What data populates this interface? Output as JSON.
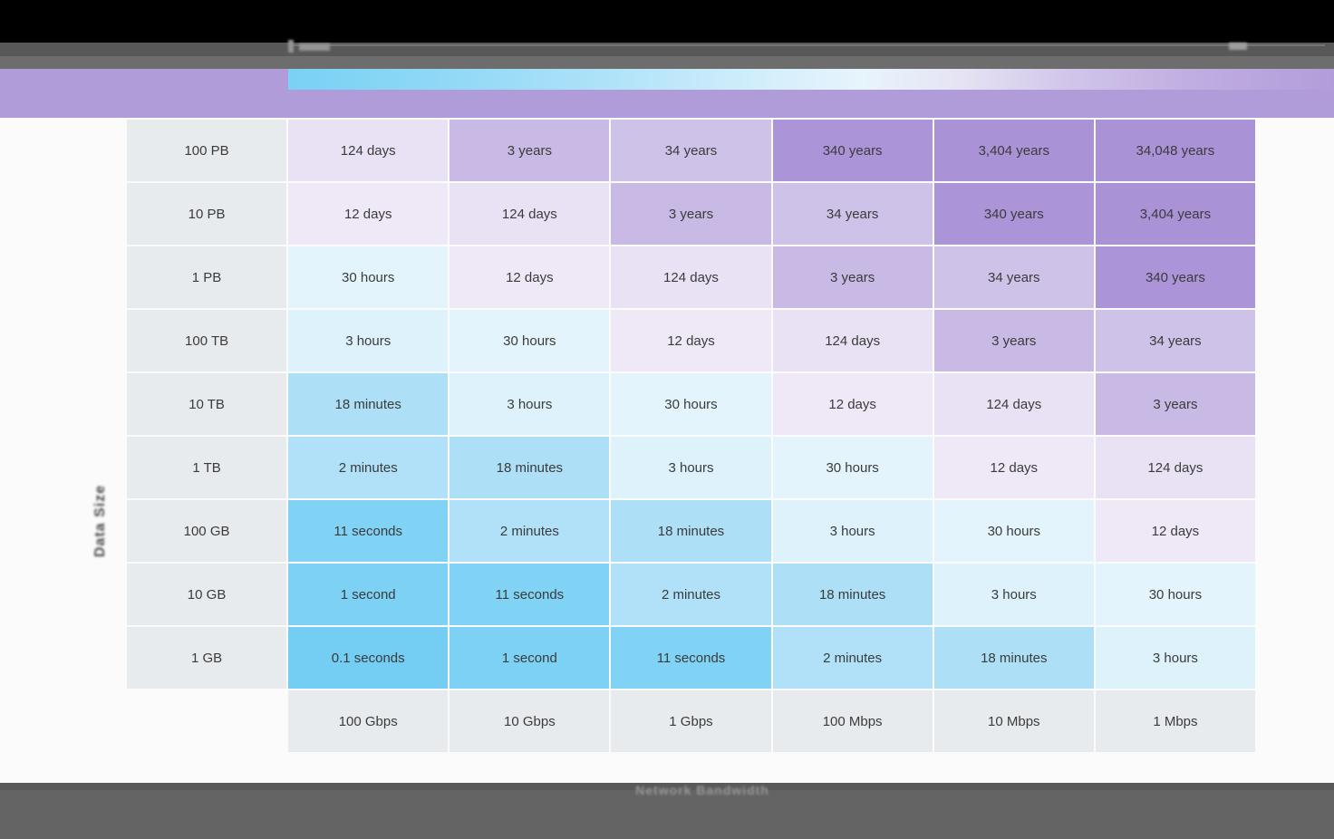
{
  "colors": {
    "top_bar": "#000000",
    "chrome_dark": "#585858",
    "chrome_mid": "#6d6d6d",
    "accent_band": "#b19cda",
    "footer_thin": "#595959",
    "footer": "#646464",
    "page_bg": "#fbfbfb",
    "header_cell_bg": "#e8ebee",
    "cell_text": "#3b3b3b",
    "gradient_strip_start": "#79d1f4",
    "gradient_strip_end": "#b29dda"
  },
  "axis_labels": {
    "y": "Data Size",
    "x": "Network Bandwidth"
  },
  "heatmap": {
    "row_labels": [
      "100 PB",
      "10 PB",
      "1 PB",
      "100 TB",
      "10 TB",
      "1 TB",
      "100 GB",
      "10 GB",
      "1 GB"
    ],
    "col_labels": [
      "100 Gbps",
      "10 Gbps",
      "1 Gbps",
      "100 Mbps",
      "10 Mbps",
      "1 Mbps"
    ],
    "grid": [
      [
        "124 days",
        "3 years",
        "34 years",
        "340 years",
        "3,404 years",
        "34,048 years"
      ],
      [
        "12 days",
        "124 days",
        "3 years",
        "34 years",
        "340 years",
        "3,404 years"
      ],
      [
        "30 hours",
        "12 days",
        "124 days",
        "3 years",
        "34 years",
        "340 years"
      ],
      [
        "3 hours",
        "30 hours",
        "12 days",
        "124 days",
        "3 years",
        "34 years"
      ],
      [
        "18 minutes",
        "3 hours",
        "30 hours",
        "12 days",
        "124 days",
        "3 years"
      ],
      [
        "2 minutes",
        "18 minutes",
        "3 hours",
        "30 hours",
        "12 days",
        "124 days"
      ],
      [
        "11 seconds",
        "2 minutes",
        "18 minutes",
        "3 hours",
        "30 hours",
        "12 days"
      ],
      [
        "1 second",
        "11 seconds",
        "2 minutes",
        "18 minutes",
        "3 hours",
        "30 hours"
      ],
      [
        "0.1 seconds",
        "1 second",
        "11 seconds",
        "2 minutes",
        "18 minutes",
        "3 hours"
      ]
    ],
    "value_colors": {
      "0.1 seconds": "#74cdf2",
      "1 second": "#7cd1f4",
      "11 seconds": "#80d3f4",
      "2 minutes": "#b1e1f8",
      "18 minutes": "#addff7",
      "3 hours": "#def2fb",
      "30 hours": "#e4f4fc",
      "12 days": "#efe9f7",
      "124 days": "#e9e2f4",
      "3 years": "#c8bae4",
      "34 years": "#cec2e8",
      "340 years": "#ac94d8",
      "3,404 years": "#aa92d6",
      "34,048 years": "#aa92d6"
    }
  },
  "chart_data": {
    "type": "heatmap",
    "title": "",
    "xlabel": "Network Bandwidth",
    "ylabel": "Data Size",
    "x_categories": [
      "100 Gbps",
      "10 Gbps",
      "1 Gbps",
      "100 Mbps",
      "10 Mbps",
      "1 Mbps"
    ],
    "y_categories": [
      "100 PB",
      "10 PB",
      "1 PB",
      "100 TB",
      "10 TB",
      "1 TB",
      "100 GB",
      "10 GB",
      "1 GB"
    ],
    "values": [
      [
        "124 days",
        "3 years",
        "34 years",
        "340 years",
        "3,404 years",
        "34,048 years"
      ],
      [
        "12 days",
        "124 days",
        "3 years",
        "34 years",
        "340 years",
        "3,404 years"
      ],
      [
        "30 hours",
        "12 days",
        "124 days",
        "3 years",
        "34 years",
        "340 years"
      ],
      [
        "3 hours",
        "30 hours",
        "12 days",
        "124 days",
        "3 years",
        "34 years"
      ],
      [
        "18 minutes",
        "3 hours",
        "30 hours",
        "12 days",
        "124 days",
        "3 years"
      ],
      [
        "2 minutes",
        "18 minutes",
        "3 hours",
        "30 hours",
        "12 days",
        "124 days"
      ],
      [
        "11 seconds",
        "2 minutes",
        "18 minutes",
        "3 hours",
        "30 hours",
        "12 days"
      ],
      [
        "1 second",
        "11 seconds",
        "2 minutes",
        "18 minutes",
        "3 hours",
        "30 hours"
      ],
      [
        "0.1 seconds",
        "1 second",
        "11 seconds",
        "2 minutes",
        "18 minutes",
        "3 hours"
      ]
    ],
    "legend_position": "none",
    "grid_lines": "white gaps between cells",
    "color_scale": "blue (fast transfer) to purple (slow transfer)"
  }
}
